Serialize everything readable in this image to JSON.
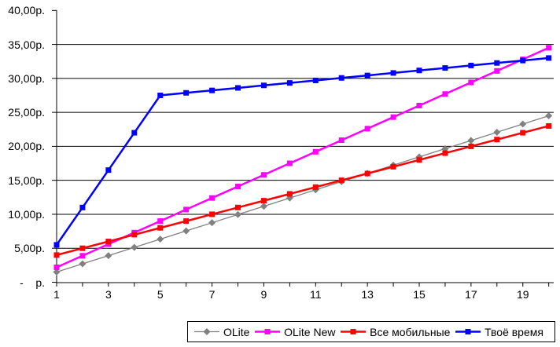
{
  "chart_data": {
    "type": "line",
    "title": "",
    "xlabel": "",
    "ylabel": "",
    "x": [
      1,
      2,
      3,
      4,
      5,
      6,
      7,
      8,
      9,
      10,
      11,
      12,
      13,
      14,
      15,
      16,
      17,
      18,
      19,
      20
    ],
    "xlim": [
      1,
      20
    ],
    "ylim": [
      0,
      40
    ],
    "ytick_step": 5,
    "ytick_labels": [
      "-    р.",
      "5,00р.",
      "10,00р.",
      "15,00р.",
      "20,00р.",
      "25,00р.",
      "30,00р.",
      "35,00р.",
      "40,00р."
    ],
    "xtick_labels_shown": [
      "1",
      "3",
      "5",
      "7",
      "9",
      "11",
      "13",
      "15",
      "17",
      "19"
    ],
    "grid": "horizontal",
    "legend_position": "bottom-right",
    "axis_color": "#000000",
    "background_color": "#ffffff",
    "series": [
      {
        "name": "OLite",
        "color": "#808080",
        "marker": "diamond",
        "line_width": 1.3,
        "values": [
          1.5,
          2.71,
          3.92,
          5.13,
          6.34,
          7.55,
          8.76,
          9.97,
          11.18,
          12.39,
          13.6,
          14.81,
          16.02,
          17.23,
          18.44,
          19.65,
          20.86,
          22.07,
          23.28,
          24.49
        ]
      },
      {
        "name": "OLite New",
        "color": "#ff00ff",
        "marker": "square",
        "line_width": 2.5,
        "values": [
          2.2,
          3.9,
          5.6,
          7.3,
          9.0,
          10.7,
          12.4,
          14.1,
          15.8,
          17.5,
          19.2,
          20.9,
          22.6,
          24.3,
          26.0,
          27.7,
          29.4,
          31.1,
          32.8,
          34.5
        ]
      },
      {
        "name": "Все мобильные",
        "color": "#ff0000",
        "marker": "square",
        "line_width": 2.5,
        "values": [
          4.0,
          5.0,
          6.0,
          7.0,
          8.0,
          9.0,
          10.0,
          11.0,
          12.0,
          13.0,
          14.0,
          15.0,
          16.0,
          17.0,
          18.0,
          19.0,
          20.0,
          21.0,
          22.0,
          23.0
        ]
      },
      {
        "name": "Твоё время",
        "color": "#0000ff",
        "marker": "square",
        "line_width": 2.5,
        "values": [
          5.5,
          11.0,
          16.5,
          22.0,
          27.5,
          27.87,
          28.23,
          28.6,
          28.97,
          29.33,
          29.7,
          30.07,
          30.43,
          30.8,
          31.17,
          31.53,
          31.9,
          32.27,
          32.63,
          33.0
        ]
      }
    ]
  }
}
